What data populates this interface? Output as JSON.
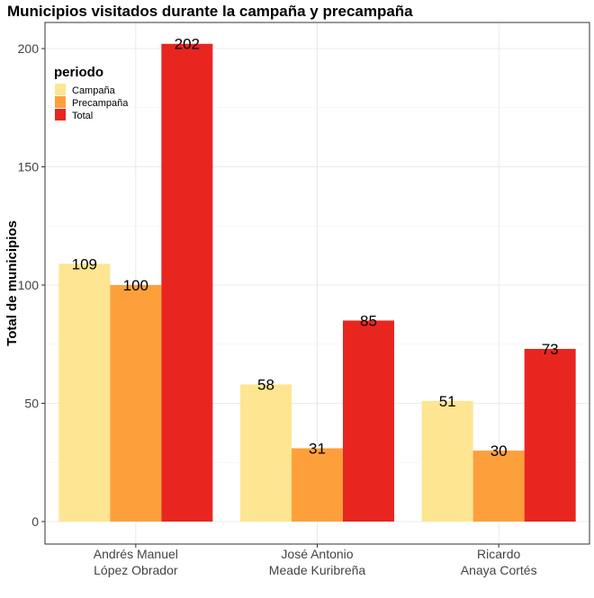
{
  "chart_data": {
    "type": "bar",
    "title": "Municipios visitados durante la campaña y precampaña",
    "xlabel": "",
    "ylabel": "Total de municipios",
    "ylim": [
      0,
      210
    ],
    "yticks": [
      0,
      50,
      100,
      150,
      200
    ],
    "grid": true,
    "categories": [
      [
        "Andrés Manuel",
        "López Obrador"
      ],
      [
        "José Antonio",
        "Meade Kuribreña"
      ],
      [
        "Ricardo",
        "Anaya Cortés"
      ]
    ],
    "legend": {
      "title": "periodo",
      "placement": "top-left"
    },
    "series": [
      {
        "name": "Campaña",
        "color": "#FEE591",
        "values": [
          109,
          58,
          51
        ]
      },
      {
        "name": "Precampaña",
        "color": "#FDA03C",
        "values": [
          100,
          31,
          30
        ]
      },
      {
        "name": "Total",
        "color": "#E8261F",
        "values": [
          202,
          85,
          73
        ]
      }
    ]
  }
}
